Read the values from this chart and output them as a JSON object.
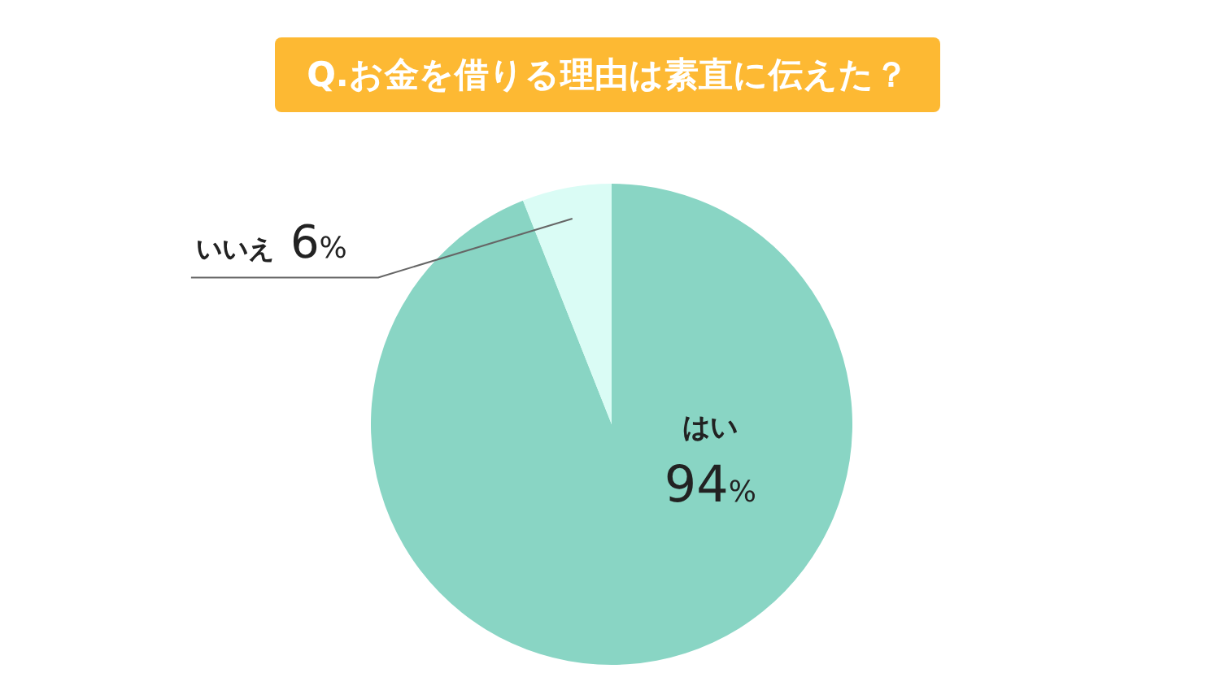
{
  "chart_data": {
    "type": "pie",
    "title": "Q.お金を借りる理由は素直に伝えた？",
    "categories": [
      "はい",
      "いいえ"
    ],
    "values": [
      94,
      6
    ],
    "colors": [
      "#89d5c4",
      "#dafcf5"
    ],
    "value_labels": [
      "94%",
      "6%"
    ]
  }
}
